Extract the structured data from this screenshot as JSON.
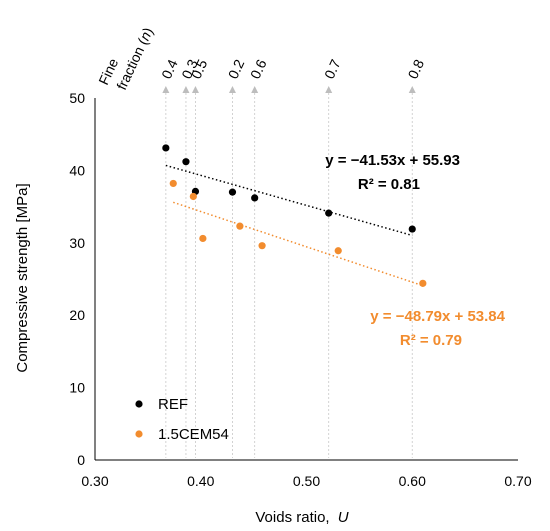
{
  "chart_data": {
    "type": "scatter",
    "xlabel_main": "Voids ratio,",
    "xlabel_symbol": "U",
    "ylabel": "Compressive strength [MPa]",
    "xlim": [
      0.3,
      0.7
    ],
    "ylim": [
      0,
      50
    ],
    "x_ticks": [
      "0.30",
      "0.40",
      "0.50",
      "0.60",
      "0.70"
    ],
    "y_ticks": [
      "0",
      "10",
      "20",
      "30",
      "40",
      "50"
    ],
    "x_tick_values": [
      0.3,
      0.4,
      0.5,
      0.6,
      0.7
    ],
    "y_tick_values": [
      0,
      10,
      20,
      30,
      40,
      50
    ],
    "top_axis": {
      "label_line1": "Fine",
      "label_line2": "fraction (",
      "label_symbol": "n",
      "label_close": ")",
      "ticks": [
        {
          "label": "0.4",
          "x": 0.367
        },
        {
          "label": "0.3",
          "x": 0.386
        },
        {
          "label": "0.5",
          "x": 0.395
        },
        {
          "label": "0.2",
          "x": 0.43
        },
        {
          "label": "0.6",
          "x": 0.451
        },
        {
          "label": "0.7",
          "x": 0.521
        },
        {
          "label": "0.8",
          "x": 0.6
        }
      ]
    },
    "series": [
      {
        "name": "REF",
        "color": "#000000",
        "points": [
          {
            "x": 0.367,
            "y": 43.1
          },
          {
            "x": 0.386,
            "y": 41.2
          },
          {
            "x": 0.395,
            "y": 37.1
          },
          {
            "x": 0.43,
            "y": 37.0
          },
          {
            "x": 0.451,
            "y": 36.2
          },
          {
            "x": 0.521,
            "y": 34.1
          },
          {
            "x": 0.6,
            "y": 31.9
          }
        ],
        "trendline": {
          "slope": -41.53,
          "intercept": 55.93,
          "x_range": [
            0.367,
            0.6
          ]
        },
        "equation": "y = −41.53x + 55.93",
        "r2": "R² = 0.81"
      },
      {
        "name": "1.5CEM54",
        "color": "#f28c2e",
        "points": [
          {
            "x": 0.374,
            "y": 38.2
          },
          {
            "x": 0.393,
            "y": 36.4
          },
          {
            "x": 0.402,
            "y": 30.6
          },
          {
            "x": 0.437,
            "y": 32.3
          },
          {
            "x": 0.458,
            "y": 29.6
          },
          {
            "x": 0.53,
            "y": 28.9
          },
          {
            "x": 0.61,
            "y": 24.4
          }
        ],
        "trendline": {
          "slope": -48.79,
          "intercept": 53.84,
          "x_range": [
            0.374,
            0.61
          ]
        },
        "equation": "y = −48.79x + 53.84",
        "r2": "R² = 0.79"
      }
    ],
    "legend_position": "bottom-left",
    "grid": false
  }
}
